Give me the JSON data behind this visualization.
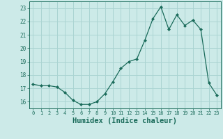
{
  "x": [
    0,
    1,
    2,
    3,
    4,
    5,
    6,
    7,
    8,
    9,
    10,
    11,
    12,
    13,
    14,
    15,
    16,
    17,
    18,
    19,
    20,
    21,
    22,
    23
  ],
  "y": [
    17.3,
    17.2,
    17.2,
    17.1,
    16.7,
    16.1,
    15.8,
    15.8,
    16.0,
    16.6,
    17.5,
    18.5,
    19.0,
    19.2,
    20.6,
    22.2,
    23.1,
    21.4,
    22.5,
    21.7,
    22.1,
    21.4,
    17.4,
    16.5
  ],
  "line_color": "#1a6b5a",
  "marker": "D",
  "marker_size": 2.0,
  "bg_color": "#cceae8",
  "grid_color": "#aad4d2",
  "tick_color": "#1a6b5a",
  "xlabel": "Humidex (Indice chaleur)",
  "xlabel_fontsize": 7.5,
  "ylabel_ticks": [
    16,
    17,
    18,
    19,
    20,
    21,
    22,
    23
  ],
  "xlim": [
    -0.5,
    23.5
  ],
  "ylim": [
    15.5,
    23.5
  ]
}
